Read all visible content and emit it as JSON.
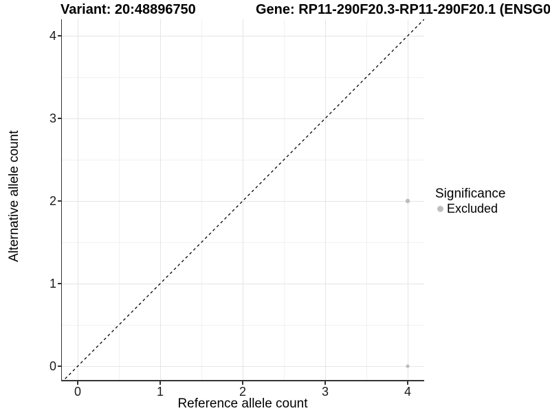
{
  "header": {
    "variant_title": "Variant: 20:48896750",
    "gene_title": "Gene: RP11-290F20.3-RP11-290F20.1 (ENSG0"
  },
  "chart_data": {
    "type": "scatter",
    "title_left": "Variant: 20:48896750",
    "title_right": "Gene: RP11-290F20.3-RP11-290F20.1 (ENSG0",
    "xlabel": "Reference allele count",
    "ylabel": "Alternative allele count",
    "xlim": [
      -0.2,
      4.2
    ],
    "ylim": [
      -0.2,
      4.2
    ],
    "x_ticks": [
      0,
      1,
      2,
      3,
      4
    ],
    "y_ticks": [
      0,
      1,
      2,
      3,
      4
    ],
    "grid": "major+minor",
    "identity_line": {
      "style": "dashed",
      "color": "#000000",
      "equation": "y = x"
    },
    "series": [
      {
        "name": "Excluded",
        "color": "#bebebe",
        "points": [
          {
            "x": 4,
            "y": 2,
            "size": 3.2
          },
          {
            "x": 4,
            "y": 0,
            "size": 2.6
          }
        ]
      }
    ],
    "legend": {
      "title": "Significance",
      "position": "right",
      "entries": [
        {
          "label": "Excluded",
          "color": "#bebebe"
        }
      ]
    }
  },
  "colors": {
    "point_gray": "#bebebe",
    "grid_major": "#e4e4e4",
    "grid_minor": "#f1f1f1",
    "axis": "#333333",
    "background": "#ffffff"
  }
}
